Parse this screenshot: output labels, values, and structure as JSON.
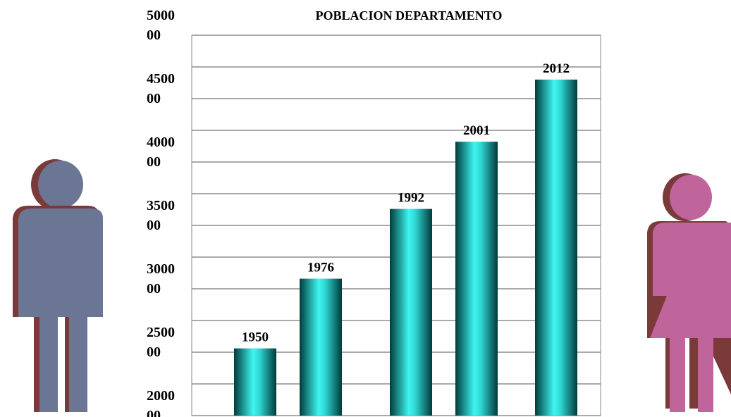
{
  "chart_data": {
    "type": "bar",
    "title": "POBLACION DEPARTAMENTO",
    "categories": [
      "1950",
      "1976",
      "1992",
      "2001",
      "2012"
    ],
    "values": [
      253000,
      308000,
      363000,
      416000,
      465000
    ],
    "ylim": [
      200000,
      500000
    ],
    "yticks": [
      {
        "value": 200000,
        "label": "2000 00"
      },
      {
        "value": 250000,
        "label": "2500 00"
      },
      {
        "value": 300000,
        "label": "3000 00"
      },
      {
        "value": 350000,
        "label": "3500 00"
      },
      {
        "value": 400000,
        "label": "4000 00"
      },
      {
        "value": 450000,
        "label": "4500 00"
      },
      {
        "value": 500000,
        "label": "5000 00"
      }
    ],
    "minor_yticks": [
      225000,
      275000,
      325000,
      375000,
      425000,
      475000
    ],
    "grid": true
  }
}
